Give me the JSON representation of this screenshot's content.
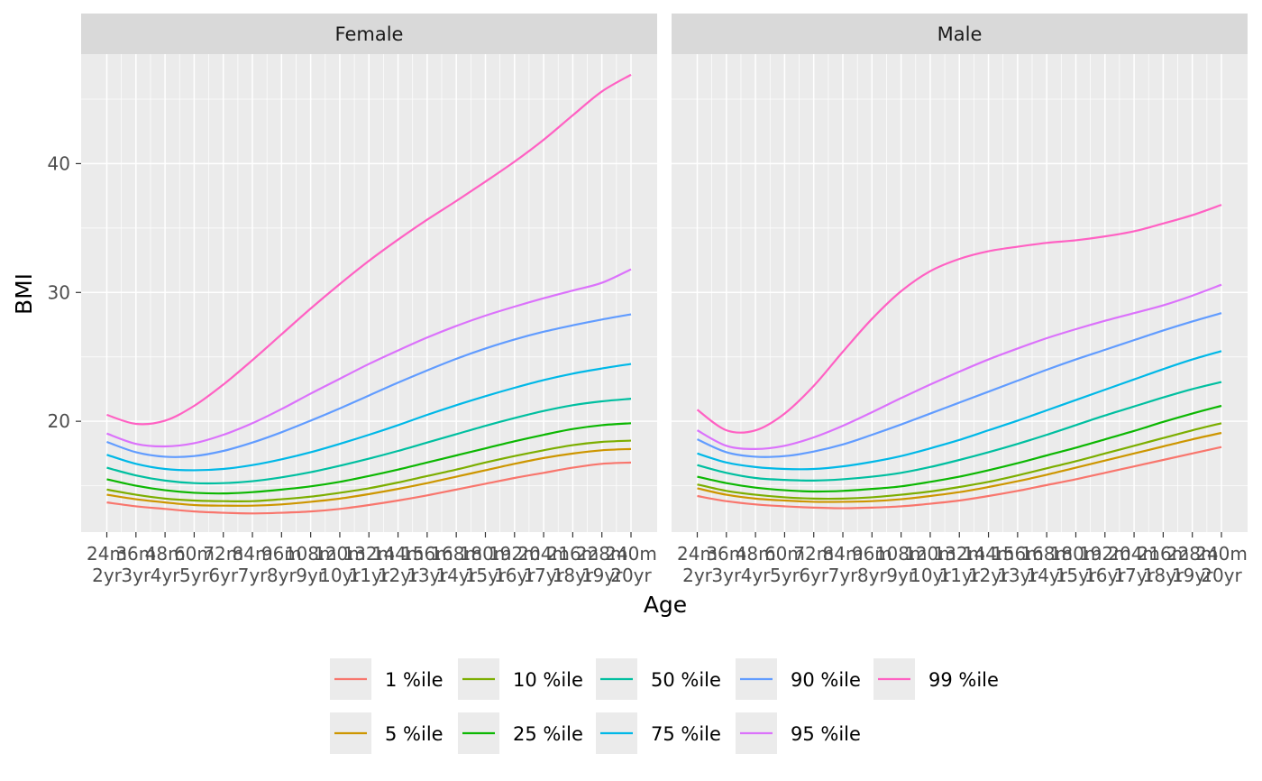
{
  "chart_data": {
    "type": "line",
    "facet_by": "Sex",
    "facets": [
      "Female",
      "Male"
    ],
    "xlabel": "Age",
    "ylabel": "BMI",
    "x_range_months": [
      24,
      240
    ],
    "ylim": [
      11.4,
      48.5
    ],
    "y_ticks": [
      20,
      30,
      40
    ],
    "x_ticks": [
      {
        "month": 24,
        "label": "24m\n2yr"
      },
      {
        "month": 36,
        "label": "36m\n3yr"
      },
      {
        "month": 48,
        "label": "48m\n4yr"
      },
      {
        "month": 60,
        "label": "60m\n5yr"
      },
      {
        "month": 72,
        "label": "72m\n6yr"
      },
      {
        "month": 84,
        "label": "84m\n7yr"
      },
      {
        "month": 96,
        "label": "96m\n8yr"
      },
      {
        "month": 108,
        "label": "108m\n9yr"
      },
      {
        "month": 120,
        "label": "120m\n10yr"
      },
      {
        "month": 132,
        "label": "132m\n11yr"
      },
      {
        "month": 144,
        "label": "144m\n12yr"
      },
      {
        "month": 156,
        "label": "156m\n13yr"
      },
      {
        "month": 168,
        "label": "168m\n14yr"
      },
      {
        "month": 180,
        "label": "180m\n15yr"
      },
      {
        "month": 192,
        "label": "192m\n16yr"
      },
      {
        "month": 204,
        "label": "204m\n17yr"
      },
      {
        "month": 216,
        "label": "216m\n18yr"
      },
      {
        "month": 228,
        "label": "228m\n19yr"
      },
      {
        "month": 240,
        "label": "240m\n20yr"
      }
    ],
    "legend_position": "bottom",
    "grid": true,
    "sample_months": [
      24,
      36,
      48,
      60,
      72,
      84,
      96,
      108,
      120,
      132,
      144,
      156,
      168,
      180,
      192,
      204,
      216,
      228,
      240
    ],
    "series": [
      {
        "name": "1 %ile",
        "color": "#F8766D",
        "Female": [
          13.7,
          13.4,
          13.2,
          13.0,
          12.9,
          12.85,
          12.9,
          13.0,
          13.2,
          13.5,
          13.85,
          14.25,
          14.7,
          15.15,
          15.6,
          16.0,
          16.4,
          16.7,
          16.8
        ],
        "Male": [
          14.2,
          13.8,
          13.55,
          13.4,
          13.3,
          13.25,
          13.3,
          13.4,
          13.6,
          13.85,
          14.2,
          14.6,
          15.05,
          15.5,
          16.0,
          16.5,
          17.0,
          17.5,
          18.0
        ]
      },
      {
        "name": "5 %ile",
        "color": "#CD9600",
        "Female": [
          14.3,
          13.95,
          13.7,
          13.5,
          13.45,
          13.45,
          13.55,
          13.75,
          14.0,
          14.35,
          14.75,
          15.2,
          15.7,
          16.2,
          16.7,
          17.15,
          17.5,
          17.75,
          17.85
        ],
        "Male": [
          14.8,
          14.3,
          14.0,
          13.85,
          13.75,
          13.75,
          13.8,
          13.95,
          14.2,
          14.5,
          14.9,
          15.35,
          15.85,
          16.4,
          16.95,
          17.5,
          18.05,
          18.6,
          19.1
        ]
      },
      {
        "name": "10 %ile",
        "color": "#7CAE00",
        "Female": [
          14.7,
          14.3,
          14.0,
          13.85,
          13.8,
          13.8,
          13.95,
          14.15,
          14.45,
          14.8,
          15.25,
          15.75,
          16.25,
          16.8,
          17.3,
          17.75,
          18.15,
          18.4,
          18.5
        ],
        "Male": [
          15.1,
          14.6,
          14.3,
          14.1,
          14.0,
          14.0,
          14.1,
          14.3,
          14.55,
          14.9,
          15.3,
          15.8,
          16.35,
          16.9,
          17.5,
          18.1,
          18.7,
          19.3,
          19.85
        ]
      },
      {
        "name": "25 %ile",
        "color": "#0CB702",
        "Female": [
          15.5,
          15.0,
          14.65,
          14.45,
          14.4,
          14.5,
          14.7,
          14.95,
          15.3,
          15.75,
          16.25,
          16.8,
          17.35,
          17.9,
          18.45,
          18.95,
          19.4,
          19.7,
          19.85
        ],
        "Male": [
          15.7,
          15.2,
          14.85,
          14.65,
          14.55,
          14.6,
          14.75,
          14.95,
          15.3,
          15.7,
          16.2,
          16.75,
          17.35,
          17.95,
          18.6,
          19.25,
          19.95,
          20.6,
          21.2
        ]
      },
      {
        "name": "50 %ile",
        "color": "#00BFA0",
        "Female": [
          16.4,
          15.8,
          15.4,
          15.2,
          15.2,
          15.35,
          15.65,
          16.05,
          16.55,
          17.1,
          17.7,
          18.35,
          19.0,
          19.65,
          20.25,
          20.8,
          21.25,
          21.55,
          21.75
        ],
        "Male": [
          16.6,
          16.0,
          15.6,
          15.45,
          15.4,
          15.5,
          15.7,
          16.0,
          16.45,
          17.0,
          17.6,
          18.25,
          18.95,
          19.7,
          20.45,
          21.15,
          21.85,
          22.5,
          23.05
        ]
      },
      {
        "name": "75 %ile",
        "color": "#00B8E7",
        "Female": [
          17.4,
          16.7,
          16.3,
          16.2,
          16.3,
          16.6,
          17.05,
          17.6,
          18.25,
          18.95,
          19.7,
          20.5,
          21.25,
          21.95,
          22.6,
          23.2,
          23.7,
          24.1,
          24.45
        ],
        "Male": [
          17.5,
          16.8,
          16.45,
          16.3,
          16.3,
          16.5,
          16.85,
          17.3,
          17.9,
          18.55,
          19.3,
          20.05,
          20.85,
          21.65,
          22.45,
          23.25,
          24.05,
          24.8,
          25.45
        ]
      },
      {
        "name": "90 %ile",
        "color": "#619CFF",
        "Female": [
          18.4,
          17.6,
          17.25,
          17.3,
          17.7,
          18.35,
          19.15,
          20.05,
          21.0,
          22.0,
          23.0,
          23.95,
          24.85,
          25.65,
          26.35,
          26.95,
          27.45,
          27.9,
          28.3
        ],
        "Male": [
          18.6,
          17.6,
          17.25,
          17.3,
          17.65,
          18.2,
          18.95,
          19.75,
          20.6,
          21.45,
          22.3,
          23.15,
          24.0,
          24.8,
          25.55,
          26.3,
          27.05,
          27.75,
          28.4
        ]
      },
      {
        "name": "95 %ile",
        "color": "#DB72FB",
        "Female": [
          19.05,
          18.25,
          18.05,
          18.3,
          18.95,
          19.85,
          20.95,
          22.15,
          23.3,
          24.45,
          25.5,
          26.5,
          27.4,
          28.2,
          28.9,
          29.55,
          30.15,
          30.75,
          31.8
        ],
        "Male": [
          19.3,
          18.1,
          17.85,
          18.1,
          18.75,
          19.65,
          20.7,
          21.8,
          22.85,
          23.85,
          24.8,
          25.65,
          26.45,
          27.15,
          27.8,
          28.4,
          29.0,
          29.75,
          30.6
        ]
      },
      {
        "name": "99 %ile",
        "color": "#FF61C3",
        "Female": [
          20.5,
          19.8,
          20.05,
          21.2,
          22.85,
          24.75,
          26.75,
          28.75,
          30.65,
          32.45,
          34.1,
          35.65,
          37.1,
          38.6,
          40.15,
          41.85,
          43.75,
          45.6,
          46.9
        ],
        "Male": [
          20.9,
          19.3,
          19.3,
          20.6,
          22.75,
          25.4,
          27.95,
          30.1,
          31.65,
          32.6,
          33.2,
          33.55,
          33.85,
          34.05,
          34.35,
          34.75,
          35.35,
          36.0,
          36.8
        ]
      }
    ],
    "legend_entries": [
      "1 %ile",
      "10 %ile",
      "50 %ile",
      "90 %ile",
      "99 %ile",
      "5 %ile",
      "25 %ile",
      "75 %ile",
      "95 %ile"
    ]
  }
}
